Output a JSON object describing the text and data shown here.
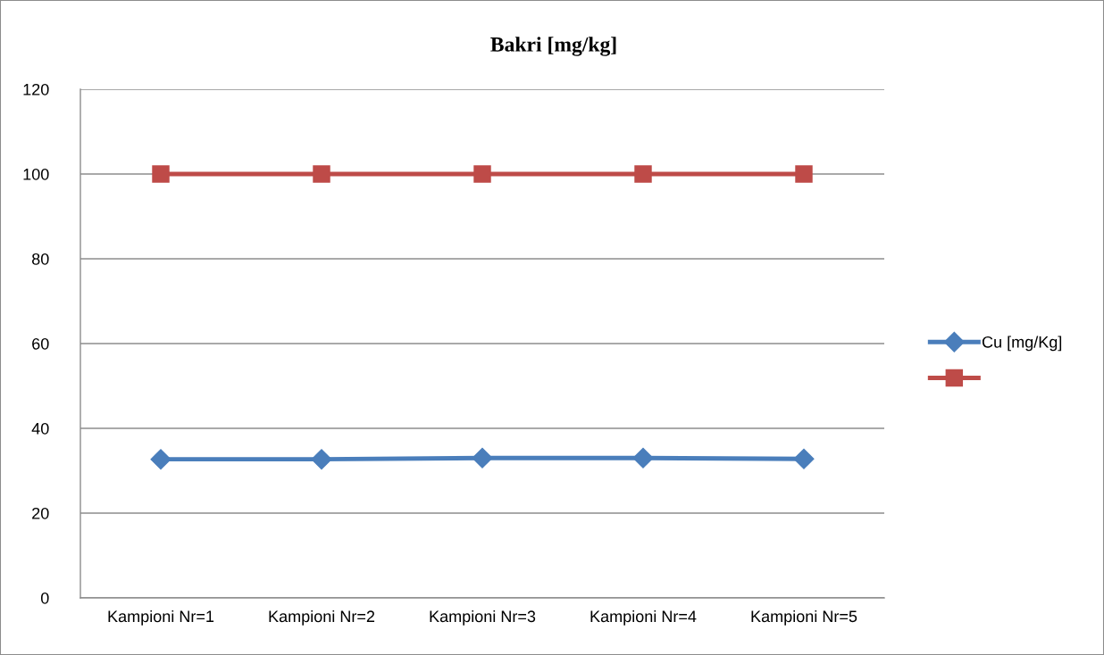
{
  "chart_data": {
    "type": "line",
    "title": "Bakri [mg/kg]",
    "categories": [
      "Kampioni Nr=1",
      "Kampioni Nr=2",
      "Kampioni Nr=3",
      "Kampioni Nr=4",
      "Kampioni Nr=5"
    ],
    "series": [
      {
        "name": "Cu [mg/Kg]",
        "color": "#4a7ebb",
        "marker": "diamond",
        "values": [
          32.7,
          32.7,
          33.0,
          33.0,
          32.8
        ]
      },
      {
        "color": "#be4b48",
        "marker": "square",
        "values": [
          100,
          100,
          100,
          100,
          100
        ]
      }
    ],
    "ylim": [
      0,
      120
    ],
    "yticks": [
      0,
      20,
      40,
      60,
      80,
      100,
      120
    ],
    "grid": "y",
    "legend": "right",
    "line_style": "solid"
  }
}
